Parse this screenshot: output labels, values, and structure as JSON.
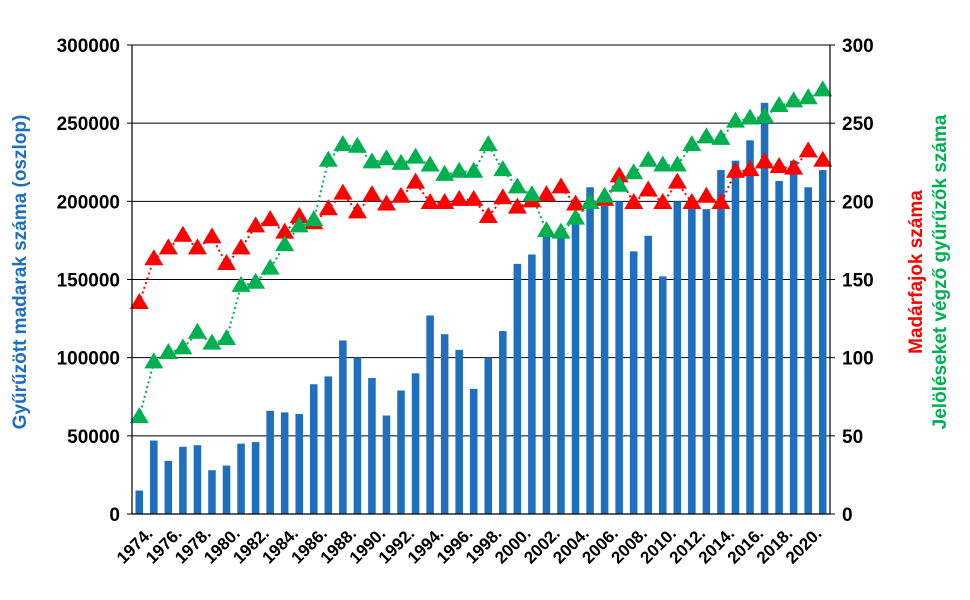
{
  "chart_data": {
    "type": "bar",
    "categories": [
      "1974.",
      "1975.",
      "1976.",
      "1977.",
      "1978.",
      "1979.",
      "1980.",
      "1981.",
      "1982.",
      "1983.",
      "1984.",
      "1985.",
      "1986.",
      "1987.",
      "1988.",
      "1989.",
      "1990.",
      "1991.",
      "1992.",
      "1993.",
      "1994.",
      "1995.",
      "1996.",
      "1997.",
      "1998.",
      "1999.",
      "2000.",
      "2001.",
      "2002.",
      "2003.",
      "2004.",
      "2005.",
      "2006.",
      "2007.",
      "2008.",
      "2009.",
      "2010.",
      "2011.",
      "2012.",
      "2013.",
      "2014.",
      "2015.",
      "2016.",
      "2017.",
      "2018.",
      "2019.",
      "2020.",
      "2021."
    ],
    "x_tick_labels": [
      "1974.",
      "1976.",
      "1978.",
      "1980.",
      "1982.",
      "1984.",
      "1986.",
      "1988.",
      "1990.",
      "1992.",
      "1994.",
      "1996.",
      "1998.",
      "2000.",
      "2002.",
      "2004.",
      "2006.",
      "2008.",
      "2010.",
      "2012.",
      "2014.",
      "2016.",
      "2018.",
      "2020."
    ],
    "series": [
      {
        "name": "Gyűrűzött madarak száma (oszlop)",
        "type": "bar",
        "axis": "left",
        "color": "#1f6fbf",
        "values": [
          15000,
          47000,
          34000,
          43000,
          44000,
          28000,
          31000,
          45000,
          46000,
          66000,
          65000,
          64000,
          83000,
          88000,
          111000,
          100000,
          87000,
          63000,
          79000,
          90000,
          127000,
          115000,
          105000,
          80000,
          100000,
          117000,
          160000,
          166000,
          180000,
          180000,
          190000,
          209000,
          197000,
          200000,
          168000,
          178000,
          152000,
          200000,
          198000,
          195000,
          220000,
          226000,
          239000,
          263000,
          213000,
          226000,
          209000,
          220000
        ]
      },
      {
        "name": "Madárfajok száma",
        "type": "line-markers",
        "axis": "right",
        "color": "#ff0000",
        "values": [
          135,
          163,
          170,
          178,
          170,
          177,
          160,
          170,
          184,
          188,
          180,
          190,
          186,
          195,
          205,
          193,
          204,
          198,
          203,
          212,
          199,
          199,
          201,
          201,
          190,
          202,
          196,
          200,
          204,
          209,
          198,
          199,
          201,
          216,
          199,
          207,
          199,
          212,
          199,
          203,
          199,
          219,
          220,
          225,
          222,
          221,
          232,
          226
        ]
      },
      {
        "name": "Jelöléseket végző gyűrűzők száma",
        "type": "line-markers",
        "axis": "right",
        "color": "#00b050",
        "values": [
          62,
          97,
          103,
          106,
          116,
          109,
          112,
          146,
          148,
          157,
          172,
          184,
          188,
          226,
          236,
          235,
          225,
          227,
          224,
          228,
          223,
          217,
          219,
          219,
          236,
          220,
          209,
          204,
          181,
          180,
          189,
          199,
          203,
          210,
          218,
          226,
          223,
          223,
          236,
          241,
          240,
          251,
          253,
          254,
          261,
          264,
          266,
          271
        ]
      }
    ],
    "y_left": {
      "label": "Gyűrűzött madarak száma (oszlop)",
      "label_color": "#1f6fbf",
      "range": [
        0,
        300000
      ],
      "ticks": [
        "0",
        "50000",
        "100000",
        "150000",
        "200000",
        "250000",
        "300000"
      ]
    },
    "y_right": {
      "labels": [
        {
          "text": "Madárfajok száma",
          "color": "#ff0000"
        },
        {
          "text": "Jelöléseket végző gyűrűzők száma",
          "color": "#00b050"
        }
      ],
      "range": [
        0,
        300
      ],
      "ticks": [
        "0",
        "50",
        "100",
        "150",
        "200",
        "250",
        "300"
      ]
    },
    "grid": "horizontal",
    "legend": "none",
    "title": ""
  }
}
